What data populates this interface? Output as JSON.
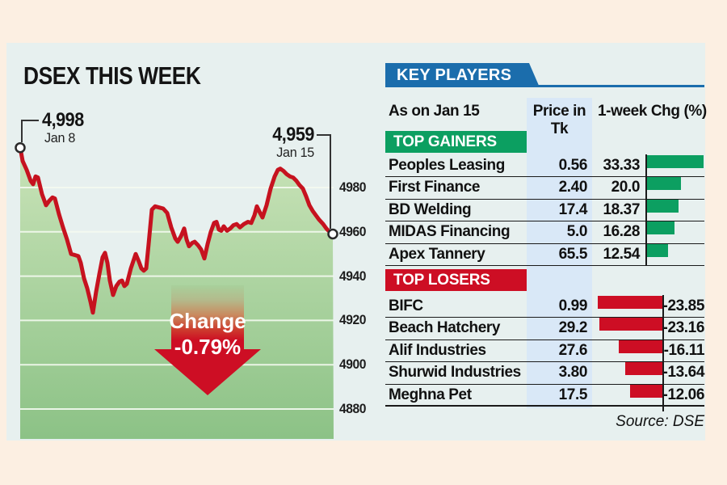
{
  "title": "DSEX THIS WEEK",
  "colors": {
    "background": "#fcefe2",
    "panel": "#e7f0ef",
    "accent_blue": "#1b6dac",
    "price_column": "#d9e8f7",
    "green": "#0c9f61",
    "red": "#cd0e24",
    "line_red": "#c6121f",
    "fill_top": "#c9e3b8",
    "fill_bottom": "#8cc286",
    "grid": "#f4f9f0"
  },
  "chart_data": {
    "type": "area",
    "title": "DSEX THIS WEEK",
    "x_range": [
      "Jan 8",
      "Jan 15"
    ],
    "y_ticks": [
      4980,
      4960,
      4940,
      4920,
      4900,
      4880
    ],
    "ylim": [
      4872,
      5002
    ],
    "grid": true,
    "start_annotation": {
      "value": "4,998",
      "date": "Jan 8"
    },
    "end_annotation": {
      "value": "4,959",
      "date": "Jan 15"
    },
    "change": {
      "label": "Change",
      "value": "-0.79%"
    },
    "points": [
      [
        25,
        4998
      ],
      [
        28,
        4992
      ],
      [
        33,
        4988
      ],
      [
        38,
        4983
      ],
      [
        41,
        4981.5
      ],
      [
        44,
        4985
      ],
      [
        47,
        4984.5
      ],
      [
        52,
        4977
      ],
      [
        57,
        4972
      ],
      [
        61,
        4974
      ],
      [
        65,
        4975.5
      ],
      [
        68,
        4975
      ],
      [
        73,
        4968
      ],
      [
        78,
        4962
      ],
      [
        83,
        4956.5
      ],
      [
        88,
        4950
      ],
      [
        93,
        4949.5
      ],
      [
        97,
        4949
      ],
      [
        100,
        4946
      ],
      [
        104,
        4939
      ],
      [
        108,
        4934.5
      ],
      [
        112,
        4928.5
      ],
      [
        115,
        4923.5
      ],
      [
        119,
        4933
      ],
      [
        123,
        4941
      ],
      [
        127,
        4948.5
      ],
      [
        130,
        4950.5
      ],
      [
        133,
        4946
      ],
      [
        136,
        4938
      ],
      [
        140,
        4931.5
      ],
      [
        144,
        4935.5
      ],
      [
        148,
        4937.5
      ],
      [
        151,
        4938
      ],
      [
        154,
        4935.5
      ],
      [
        157,
        4936.5
      ],
      [
        162,
        4943.5
      ],
      [
        168,
        4950
      ],
      [
        172,
        4946.5
      ],
      [
        175,
        4943.5
      ],
      [
        178,
        4942.5
      ],
      [
        181,
        4943.5
      ],
      [
        184,
        4954.5
      ],
      [
        188,
        4970
      ],
      [
        192,
        4971.5
      ],
      [
        197,
        4971
      ],
      [
        202,
        4970.5
      ],
      [
        207,
        4968.5
      ],
      [
        212,
        4962
      ],
      [
        217,
        4957
      ],
      [
        220,
        4955.5
      ],
      [
        224,
        4958
      ],
      [
        228,
        4961.5
      ],
      [
        231,
        4956.5
      ],
      [
        234,
        4953.5
      ],
      [
        238,
        4955
      ],
      [
        241,
        4955.5
      ],
      [
        245,
        4954
      ],
      [
        249,
        4952
      ],
      [
        253,
        4948
      ],
      [
        257,
        4954.5
      ],
      [
        261,
        4960
      ],
      [
        265,
        4964
      ],
      [
        268,
        4964.5
      ],
      [
        271,
        4961
      ],
      [
        274,
        4960.5
      ],
      [
        277,
        4962.5
      ],
      [
        281,
        4960.5
      ],
      [
        285,
        4961.5
      ],
      [
        289,
        4963
      ],
      [
        293,
        4963.5
      ],
      [
        297,
        4962
      ],
      [
        302,
        4963.5
      ],
      [
        307,
        4964.5
      ],
      [
        311,
        4964
      ],
      [
        315,
        4967.5
      ],
      [
        318,
        4971.5
      ],
      [
        322,
        4968.5
      ],
      [
        325,
        4966.5
      ],
      [
        330,
        4972
      ],
      [
        335,
        4979.5
      ],
      [
        340,
        4985
      ],
      [
        344,
        4988
      ],
      [
        347,
        4988.5
      ],
      [
        351,
        4987.5
      ],
      [
        355,
        4986
      ],
      [
        359,
        4985
      ],
      [
        363,
        4984.5
      ],
      [
        367,
        4983
      ],
      [
        371,
        4981
      ],
      [
        375,
        4979.5
      ],
      [
        379,
        4976
      ],
      [
        383,
        4972
      ],
      [
        387,
        4969.5
      ],
      [
        391,
        4967.5
      ],
      [
        395,
        4965.5
      ],
      [
        400,
        4963.5
      ],
      [
        404,
        4961.5
      ],
      [
        408,
        4960
      ],
      [
        412,
        4959
      ]
    ]
  },
  "key_players": {
    "banner": "KEY PLAYERS",
    "as_on": "As on Jan 15",
    "price_header": "Price in Tk",
    "chg_header": "1-week Chg (%)",
    "gainers": {
      "banner": "TOP GAINERS",
      "rows": [
        {
          "name": "Peoples Leasing",
          "price": "0.56",
          "chg": "33.33"
        },
        {
          "name": "First Finance",
          "price": "2.40",
          "chg": "20.0"
        },
        {
          "name": "BD Welding",
          "price": "17.4",
          "chg": "18.37"
        },
        {
          "name": "MIDAS Financing",
          "price": "5.0",
          "chg": "16.28"
        },
        {
          "name": "Apex Tannery",
          "price": "65.5",
          "chg": "12.54"
        }
      ]
    },
    "losers": {
      "banner": "TOP LOSERS",
      "rows": [
        {
          "name": "BIFC",
          "price": "0.99",
          "chg": "-23.85"
        },
        {
          "name": "Beach Hatchery",
          "price": "29.2",
          "chg": "-23.16"
        },
        {
          "name": "Alif Industries",
          "price": "27.6",
          "chg": "-16.11"
        },
        {
          "name": "Shurwid Industries",
          "price": "3.80",
          "chg": "-13.64"
        },
        {
          "name": "Meghna Pet",
          "price": "17.5",
          "chg": "-12.06"
        }
      ]
    },
    "source": "Source: DSE"
  }
}
